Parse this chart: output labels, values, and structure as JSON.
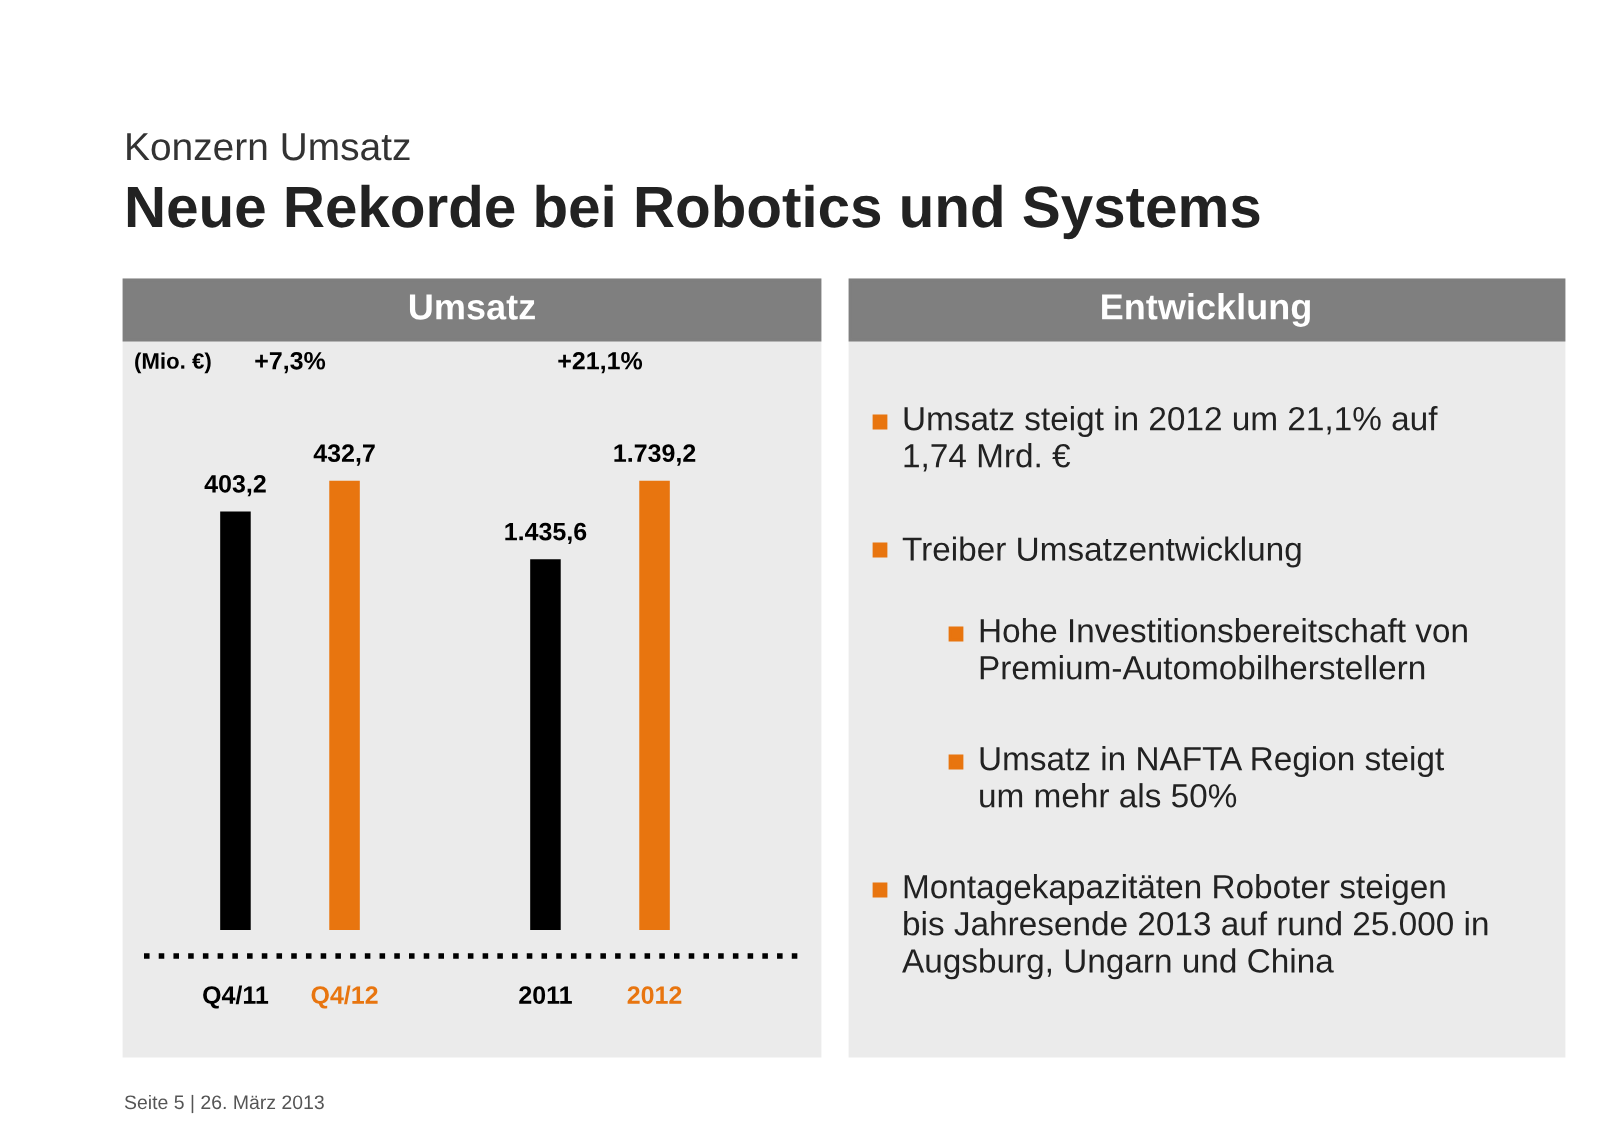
{
  "chart_data": [
    {
      "type": "other",
      "title": "Konzern Umsatz",
      "subtitle": "Neue Rekorde bei Robotics und Systems",
      "annotations": [
        "Seite 5 | 26. März 2013"
      ]
    },
    {
      "type": "bar",
      "title": "Umsatz",
      "ylabel": "(Mio. €)",
      "categories": [
        "Q4/11",
        "Q4/12"
      ],
      "values": [
        403.2,
        432.7
      ],
      "colors": [
        "#000000",
        "#e8750f"
      ],
      "value_labels": [
        "403,2",
        "432,7"
      ],
      "annotations": [
        "+7,3%"
      ]
    },
    {
      "type": "bar",
      "categories": [
        "2011",
        "2012"
      ],
      "values": [
        1435.6,
        1739.2
      ],
      "colors": [
        "#000000",
        "#e8750f"
      ],
      "value_labels": [
        "1.435,6",
        "1.739,2"
      ],
      "annotations": [
        "+21,1%"
      ]
    },
    {
      "type": "other",
      "title": "Entwicklung",
      "annotations": [
        "Umsatz steigt in 2012 um 21,1% auf\n1,74 Mrd. €",
        "Treiber Umsatzentwicklung",
        "Hohe Investitionsbereitschaft von\nPremium-Automobilherstellern",
        "Umsatz in NAFTA Region steigt\num mehr als 50%",
        "Montagekapazitäten Roboter steigen\nbis Jahresende 2013 auf rund 25.000 in\nAugsburg, Ungarn und China"
      ]
    }
  ]
}
